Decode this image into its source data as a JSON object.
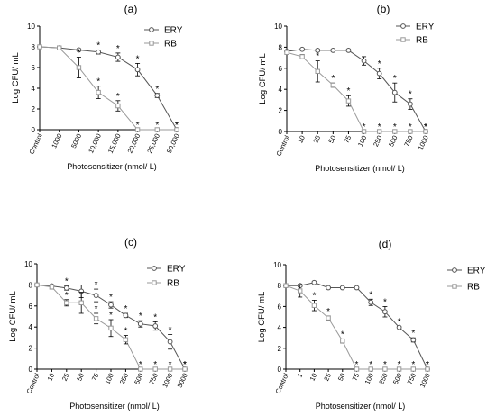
{
  "colors": {
    "ery": "#555555",
    "rb": "#9a9a9a",
    "axis": "#000000"
  },
  "chart_data": [
    {
      "type": "line",
      "panel_label": "(a)",
      "ylabel": "Log CFU/ mL",
      "xlabel": "Photosensitizer (nmol/ L)",
      "ylim": [
        0,
        10
      ],
      "yticks": [
        0,
        2,
        4,
        6,
        8,
        10
      ],
      "categories": [
        "Control",
        "1000",
        "5000",
        "10,000",
        "15,000",
        "20,000",
        "25,000",
        "50,000"
      ],
      "legend": "top-right",
      "series": [
        {
          "name": "ERY",
          "marker": "circle",
          "values": [
            8,
            7.9,
            7.7,
            7.5,
            7.0,
            5.8,
            3.3,
            0
          ],
          "errors": [
            0.1,
            0.1,
            0.1,
            0.2,
            0.4,
            0.6,
            0.2,
            0
          ],
          "stars": [
            false,
            false,
            false,
            true,
            true,
            true,
            true,
            true
          ]
        },
        {
          "name": "RB",
          "marker": "square",
          "values": [
            8,
            7.9,
            6.0,
            3.6,
            2.3,
            0,
            0,
            0
          ],
          "errors": [
            0.1,
            0.1,
            1.0,
            0.6,
            0.5,
            0,
            0,
            0
          ],
          "stars": [
            false,
            false,
            true,
            true,
            true,
            true,
            true,
            true
          ]
        }
      ]
    },
    {
      "type": "line",
      "panel_label": "(b)",
      "ylabel": "Log CFU/ mL",
      "xlabel": "Photosensitizer (nmol/ L)",
      "ylim": [
        0,
        10
      ],
      "yticks": [
        0,
        2,
        4,
        6,
        8,
        10
      ],
      "categories": [
        "Control",
        "10",
        "25",
        "50",
        "75",
        "100",
        "250",
        "500",
        "750",
        "1000"
      ],
      "legend": "top-right",
      "series": [
        {
          "name": "ERY",
          "marker": "circle",
          "values": [
            7.6,
            7.8,
            7.7,
            7.7,
            7.7,
            6.7,
            5.5,
            3.7,
            2.6,
            0
          ],
          "errors": [
            0.1,
            0.1,
            0.1,
            0.1,
            0.1,
            0.4,
            0.5,
            0.9,
            0.5,
            0
          ],
          "stars": [
            false,
            false,
            false,
            false,
            false,
            false,
            true,
            true,
            true,
            true
          ]
        },
        {
          "name": "RB",
          "marker": "square",
          "values": [
            7.5,
            7.1,
            5.7,
            4.4,
            2.9,
            0,
            0,
            0,
            0,
            0
          ],
          "errors": [
            0.1,
            0.2,
            1.0,
            0.2,
            0.5,
            0,
            0,
            0,
            0,
            0
          ],
          "stars": [
            false,
            false,
            true,
            true,
            true,
            true,
            true,
            true,
            true,
            true
          ]
        }
      ]
    },
    {
      "type": "line",
      "panel_label": "(c)",
      "ylabel": "Log CFU/ mL",
      "xlabel": "Photosensitizer (nmol/ L)",
      "ylim": [
        0,
        10
      ],
      "yticks": [
        0,
        2,
        4,
        6,
        8,
        10
      ],
      "categories": [
        "Control",
        "10",
        "25",
        "50",
        "75",
        "100",
        "250",
        "500",
        "750",
        "1000",
        "5000"
      ],
      "legend": "top-right",
      "series": [
        {
          "name": "ERY",
          "marker": "circle",
          "values": [
            8,
            7.9,
            7.7,
            7.4,
            7.0,
            6.1,
            5.1,
            4.3,
            4.1,
            2.6,
            0
          ],
          "errors": [
            0.1,
            0.1,
            0.2,
            0.6,
            0.6,
            0.3,
            0.2,
            0.3,
            0.4,
            0.7,
            0
          ],
          "stars": [
            false,
            false,
            true,
            false,
            true,
            true,
            true,
            true,
            true,
            true,
            true
          ]
        },
        {
          "name": "RB",
          "marker": "square",
          "values": [
            8,
            7.8,
            6.3,
            6.3,
            4.8,
            3.9,
            2.8,
            0,
            0,
            0,
            0
          ],
          "errors": [
            0.1,
            0.2,
            0.3,
            1.0,
            0.5,
            0.8,
            0.4,
            0,
            0,
            0,
            0
          ],
          "stars": [
            false,
            false,
            true,
            false,
            true,
            true,
            true,
            true,
            true,
            true,
            true
          ]
        }
      ]
    },
    {
      "type": "line",
      "panel_label": "(d)",
      "ylabel": "Log CFU/ mL",
      "xlabel": "Photosensitizer (nmol/ L)",
      "ylim": [
        0,
        10
      ],
      "yticks": [
        0,
        2,
        4,
        6,
        8,
        10
      ],
      "categories": [
        "Control",
        "1",
        "10",
        "25",
        "50",
        "75",
        "100",
        "250",
        "500",
        "750",
        "1000"
      ],
      "legend": "right",
      "series": [
        {
          "name": "ERY",
          "marker": "circle",
          "values": [
            8,
            8,
            8.3,
            7.8,
            7.8,
            7.8,
            6.4,
            5.5,
            4.0,
            2.8,
            0
          ],
          "errors": [
            0.1,
            0.1,
            0.1,
            0.1,
            0.1,
            0.1,
            0.3,
            0.5,
            0.1,
            0.2,
            0
          ],
          "stars": [
            false,
            false,
            false,
            false,
            false,
            false,
            true,
            true,
            true,
            true,
            true
          ]
        },
        {
          "name": "RB",
          "marker": "square",
          "values": [
            8,
            7.5,
            6.1,
            4.9,
            2.7,
            0,
            0,
            0,
            0,
            0,
            0
          ],
          "errors": [
            0.1,
            0.6,
            0.5,
            0.2,
            0.2,
            0,
            0,
            0,
            0,
            0,
            0
          ],
          "stars": [
            false,
            false,
            true,
            true,
            true,
            true,
            true,
            true,
            true,
            true,
            true
          ]
        }
      ]
    }
  ]
}
